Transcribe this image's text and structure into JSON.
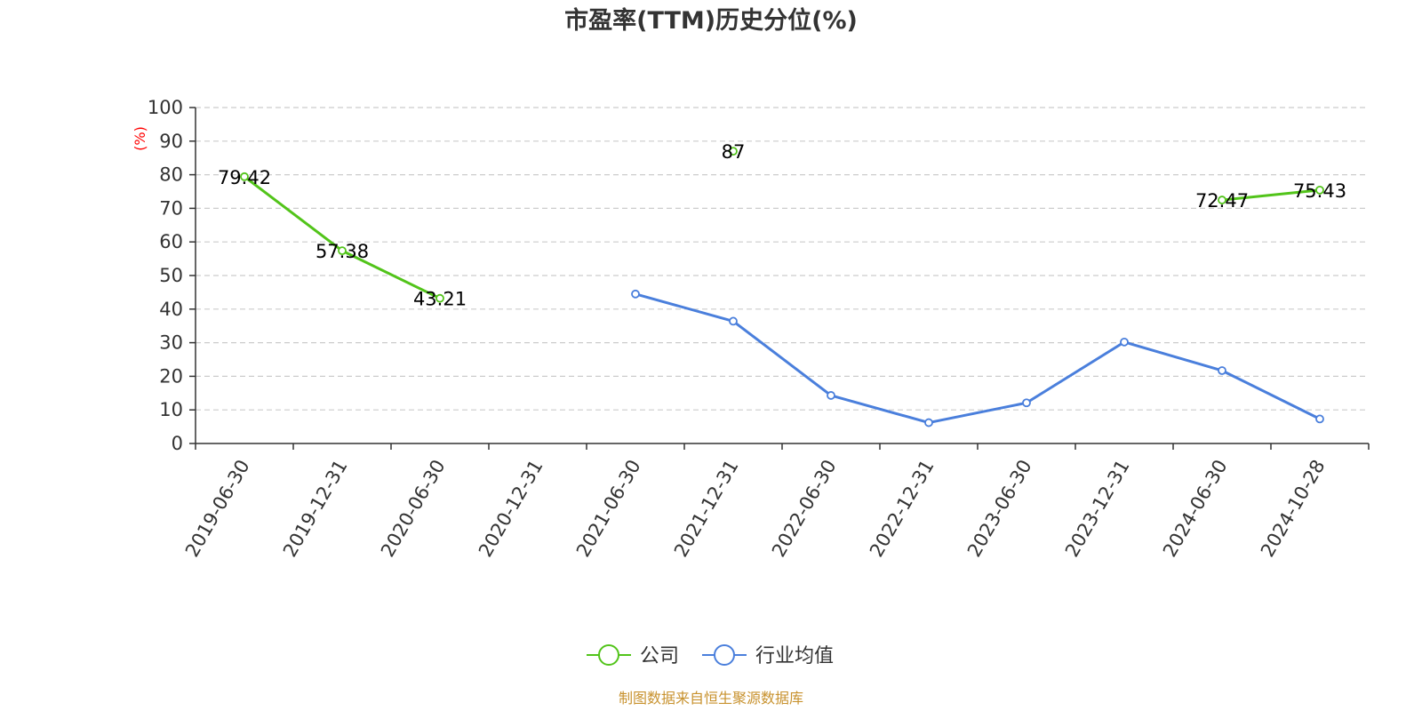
{
  "chart_data": {
    "type": "line",
    "title": "市盈率(TTM)历史分位(%)",
    "ylabel": "(%)",
    "ylim": [
      0,
      100
    ],
    "yticks": [
      0,
      10,
      20,
      30,
      40,
      50,
      60,
      70,
      80,
      90,
      100
    ],
    "grid": true,
    "legend_position": "bottom-center",
    "categories": [
      "2019-06-30",
      "2019-12-31",
      "2020-06-30",
      "2020-12-31",
      "2021-06-30",
      "2021-12-31",
      "2022-06-30",
      "2022-12-31",
      "2023-06-30",
      "2023-12-31",
      "2024-06-30",
      "2024-10-28"
    ],
    "series": [
      {
        "name": "公司",
        "color": "#52c41a",
        "values": [
          79.42,
          57.38,
          43.21,
          null,
          null,
          87,
          null,
          null,
          null,
          null,
          72.47,
          75.43
        ],
        "data_labels": [
          "79.42",
          "57.38",
          "43.21",
          "",
          "",
          "87",
          "",
          "",
          "",
          "",
          "72.47",
          "75.43"
        ]
      },
      {
        "name": "行业均值",
        "color": "#4a7fdc",
        "values": [
          null,
          null,
          null,
          null,
          44.5,
          36.4,
          14.3,
          6.2,
          12.1,
          30.2,
          21.7,
          7.3
        ]
      }
    ]
  },
  "source_text": "制图数据来自恒生聚源数据库"
}
